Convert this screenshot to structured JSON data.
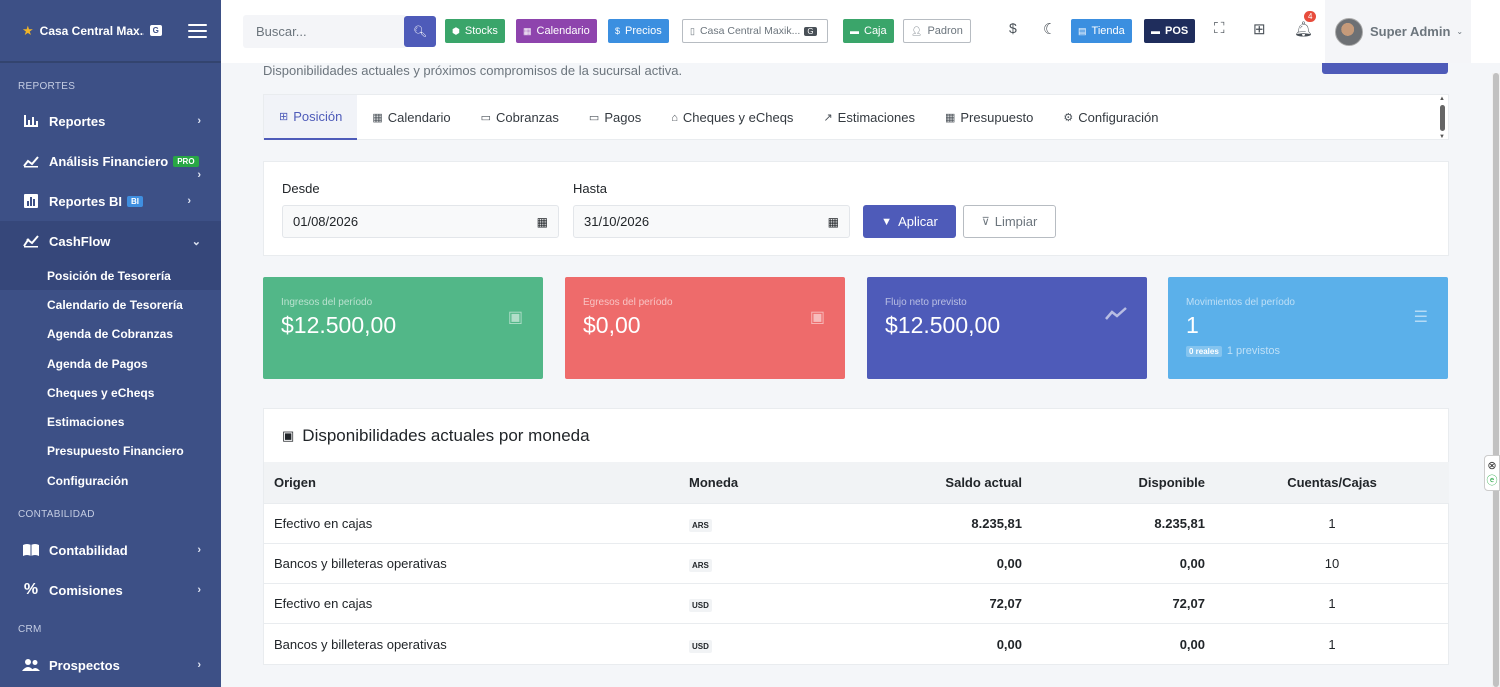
{
  "colors": {
    "primary": "#4e5bb9",
    "sidebar": "#3d5086",
    "success": "#52b788",
    "danger": "#ee6b6b",
    "info": "#5bb0ea"
  },
  "sidebar": {
    "brand": "Casa Central Max...",
    "brand_badge": "G",
    "sections": {
      "reportes": "REPORTES",
      "contabilidad": "CONTABILIDAD",
      "crm": "CRM"
    },
    "items": {
      "reportes": "Reportes",
      "analisis": "Análisis Financiero",
      "analisis_badge": "PRO",
      "reportes_bi": "Reportes BI",
      "reportes_bi_badge": "BI",
      "cashflow": "CashFlow",
      "contabilidad": "Contabilidad",
      "comisiones": "Comisiones",
      "prospectos": "Prospectos"
    },
    "cashflow_sub": [
      "Posición de Tesorería",
      "Calendario de Tesorería",
      "Agenda de Cobranzas",
      "Agenda de Pagos",
      "Cheques y eCheqs",
      "Estimaciones",
      "Presupuesto Financiero",
      "Configuración"
    ]
  },
  "topbar": {
    "search_placeholder": "Buscar...",
    "stocks": "Stocks",
    "calendario": "Calendario",
    "precios": "Precios",
    "branch": "Casa Central Maxik...",
    "branch_badge": "G",
    "caja": "Caja",
    "padron": "Padron",
    "currency_symbol": "$",
    "tienda": "Tienda",
    "pos": "POS",
    "notif_count": "4",
    "user_name": "Super Admin"
  },
  "page": {
    "subtitle": "Disponibilidades actuales y próximos compromisos de la sucursal activa."
  },
  "tabs": [
    {
      "label": "Posición",
      "icon": "⊞"
    },
    {
      "label": "Calendario",
      "icon": "▦"
    },
    {
      "label": "Cobranzas",
      "icon": "▭"
    },
    {
      "label": "Pagos",
      "icon": "▭"
    },
    {
      "label": "Cheques y eCheqs",
      "icon": "⌂"
    },
    {
      "label": "Estimaciones",
      "icon": "↗"
    },
    {
      "label": "Presupuesto",
      "icon": "▦"
    },
    {
      "label": "Configuración",
      "icon": "⚙"
    }
  ],
  "filters": {
    "desde_label": "Desde",
    "desde_value": "01/08/2026",
    "hasta_label": "Hasta",
    "hasta_value": "31/10/2026",
    "apply": "Aplicar",
    "clear": "Limpiar"
  },
  "cards": {
    "ingresos": {
      "label": "Ingresos del período",
      "value": "$12.500,00"
    },
    "egresos": {
      "label": "Egresos del período",
      "value": "$0,00"
    },
    "flujo": {
      "label": "Flujo neto previsto",
      "value": "$12.500,00"
    },
    "movimientos": {
      "label": "Movimientos del período",
      "value": "1",
      "reales": "0 reales",
      "previstos": "1 previstos"
    }
  },
  "table": {
    "title": "Disponibilidades actuales por moneda",
    "headers": {
      "origen": "Origen",
      "moneda": "Moneda",
      "saldo": "Saldo actual",
      "disponible": "Disponible",
      "cuentas": "Cuentas/Cajas"
    },
    "rows": [
      {
        "origen": "Efectivo en cajas",
        "moneda": "ARS",
        "saldo": "8.235,81",
        "disponible": "8.235,81",
        "cuentas": "1"
      },
      {
        "origen": "Bancos y billeteras operativas",
        "moneda": "ARS",
        "saldo": "0,00",
        "disponible": "0,00",
        "cuentas": "10"
      },
      {
        "origen": "Efectivo en cajas",
        "moneda": "USD",
        "saldo": "72,07",
        "disponible": "72,07",
        "cuentas": "1"
      },
      {
        "origen": "Bancos y billeteras operativas",
        "moneda": "USD",
        "saldo": "0,00",
        "disponible": "0,00",
        "cuentas": "1"
      }
    ]
  }
}
